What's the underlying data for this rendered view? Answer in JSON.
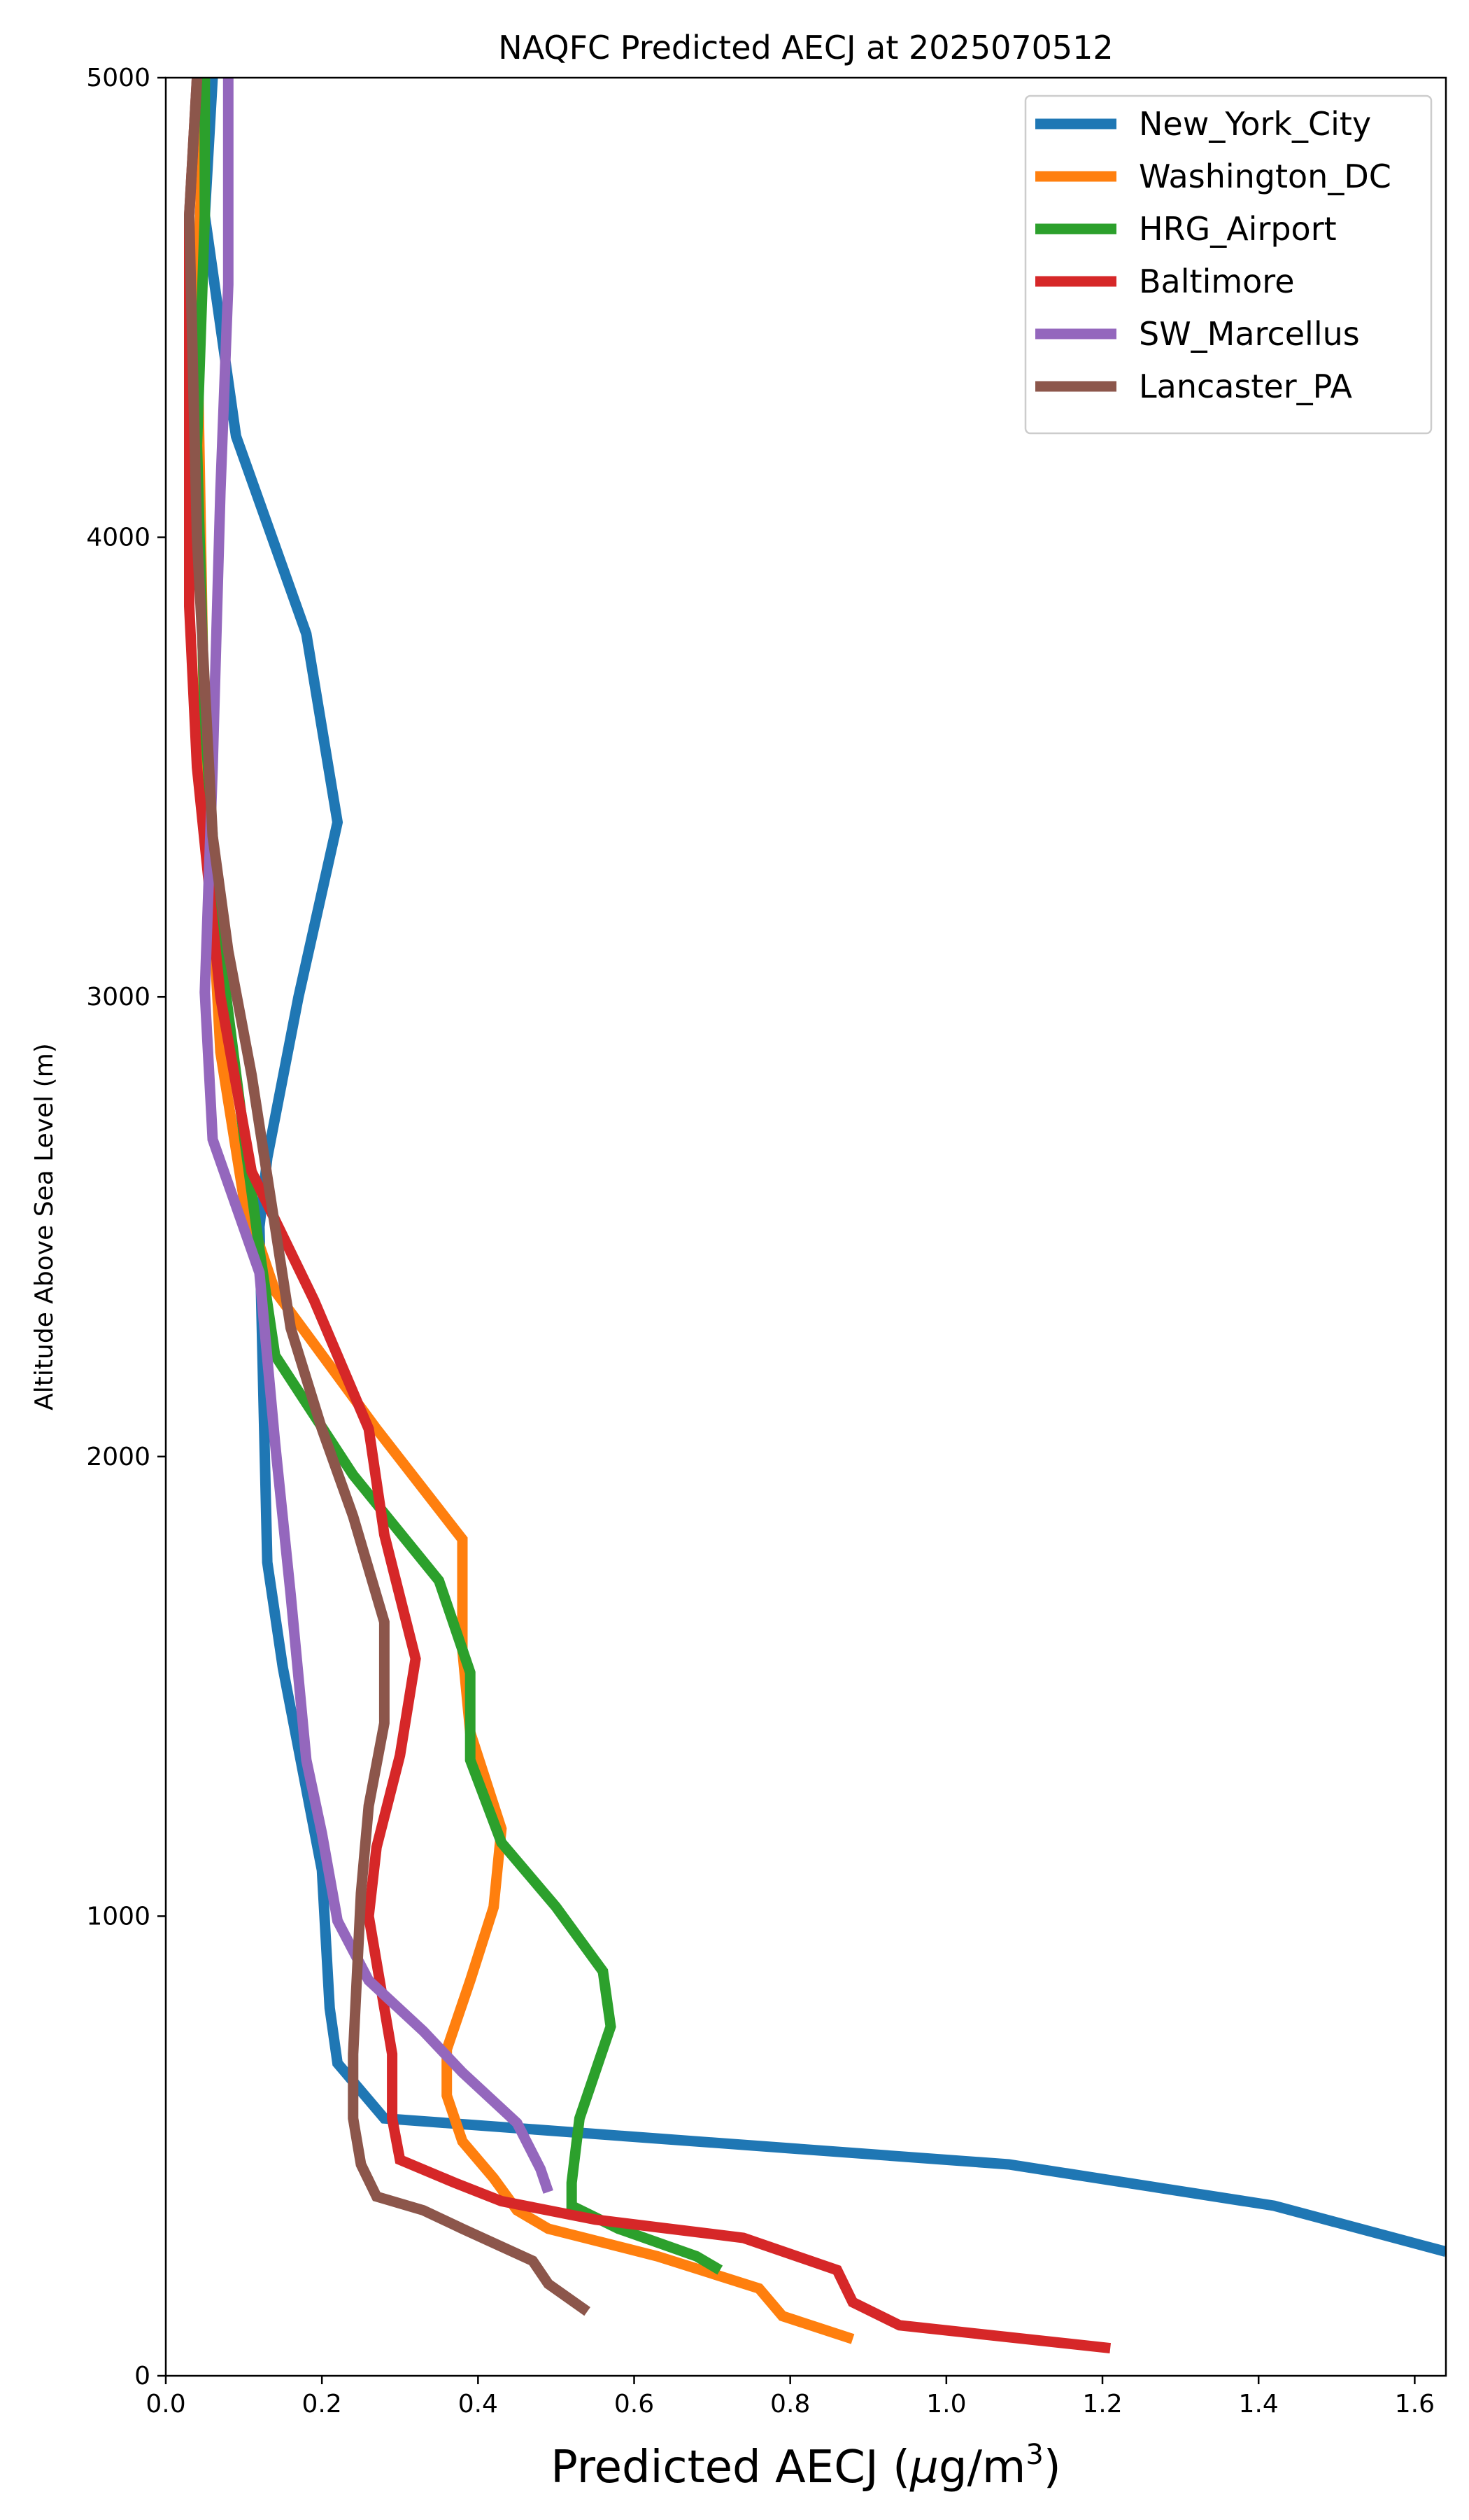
{
  "chart_data": {
    "type": "line",
    "title": "NAQFC Predicted AECJ at 2025070512",
    "xlabel": "Predicted AECJ (μg/m³)",
    "xlabel_main": "Predicted AECJ (",
    "xlabel_mu": "μ",
    "xlabel_unit": "g/m",
    "xlabel_exp": "3",
    "xlabel_close": ")",
    "ylabel": "Altitude Above Sea Level (m)",
    "xlim": [
      0,
      1.64
    ],
    "ylim": [
      0,
      5000
    ],
    "xticks": [
      0.0,
      0.2,
      0.4,
      0.6,
      0.8,
      1.0,
      1.2,
      1.4,
      1.6
    ],
    "xtick_labels": [
      "0.0",
      "0.2",
      "0.4",
      "0.6",
      "0.8",
      "1.0",
      "1.2",
      "1.4",
      "1.6"
    ],
    "yticks": [
      0,
      1000,
      2000,
      3000,
      4000,
      5000
    ],
    "ytick_labels": [
      "0",
      "1000",
      "2000",
      "3000",
      "4000",
      "5000"
    ],
    "grid": false,
    "legend_position": "top-right",
    "series": [
      {
        "name": "New_York_City",
        "color": "#1f77b4",
        "points": [
          [
            1.64,
            270
          ],
          [
            1.42,
            370
          ],
          [
            1.08,
            460
          ],
          [
            0.28,
            560
          ],
          [
            0.22,
            680
          ],
          [
            0.21,
            800
          ],
          [
            0.2,
            1100
          ],
          [
            0.15,
            1540
          ],
          [
            0.13,
            1770
          ],
          [
            0.12,
            2500
          ],
          [
            0.13,
            2650
          ],
          [
            0.17,
            3000
          ],
          [
            0.22,
            3380
          ],
          [
            0.18,
            3790
          ],
          [
            0.09,
            4220
          ],
          [
            0.05,
            4700
          ],
          [
            0.06,
            5000
          ]
        ]
      },
      {
        "name": "Washington_DC",
        "color": "#ff7f0e",
        "points": [
          [
            0.88,
            80
          ],
          [
            0.79,
            130
          ],
          [
            0.76,
            190
          ],
          [
            0.63,
            260
          ],
          [
            0.49,
            320
          ],
          [
            0.45,
            360
          ],
          [
            0.42,
            430
          ],
          [
            0.38,
            510
          ],
          [
            0.36,
            610
          ],
          [
            0.36,
            710
          ],
          [
            0.39,
            860
          ],
          [
            0.42,
            1020
          ],
          [
            0.43,
            1190
          ],
          [
            0.39,
            1400
          ],
          [
            0.38,
            1580
          ],
          [
            0.38,
            1820
          ],
          [
            0.27,
            2060
          ],
          [
            0.14,
            2360
          ],
          [
            0.1,
            2560
          ],
          [
            0.07,
            2880
          ],
          [
            0.05,
            3500
          ],
          [
            0.04,
            4500
          ],
          [
            0.05,
            5000
          ]
        ]
      },
      {
        "name": "HRG_Airport",
        "color": "#2ca02c",
        "points": [
          [
            0.71,
            230
          ],
          [
            0.68,
            260
          ],
          [
            0.58,
            320
          ],
          [
            0.52,
            370
          ],
          [
            0.52,
            420
          ],
          [
            0.53,
            560
          ],
          [
            0.55,
            660
          ],
          [
            0.57,
            760
          ],
          [
            0.56,
            880
          ],
          [
            0.5,
            1020
          ],
          [
            0.43,
            1160
          ],
          [
            0.39,
            1340
          ],
          [
            0.39,
            1530
          ],
          [
            0.35,
            1730
          ],
          [
            0.24,
            1960
          ],
          [
            0.14,
            2220
          ],
          [
            0.12,
            2450
          ],
          [
            0.1,
            2700
          ],
          [
            0.07,
            3100
          ],
          [
            0.05,
            3600
          ],
          [
            0.04,
            4200
          ],
          [
            0.05,
            4700
          ],
          [
            0.05,
            5000
          ]
        ]
      },
      {
        "name": "Baltimore",
        "color": "#d62728",
        "points": [
          [
            1.21,
            60
          ],
          [
            0.94,
            110
          ],
          [
            0.88,
            160
          ],
          [
            0.86,
            230
          ],
          [
            0.74,
            300
          ],
          [
            0.55,
            340
          ],
          [
            0.43,
            380
          ],
          [
            0.37,
            420
          ],
          [
            0.3,
            470
          ],
          [
            0.29,
            560
          ],
          [
            0.29,
            700
          ],
          [
            0.26,
            1000
          ],
          [
            0.27,
            1150
          ],
          [
            0.3,
            1350
          ],
          [
            0.32,
            1560
          ],
          [
            0.28,
            1830
          ],
          [
            0.26,
            2060
          ],
          [
            0.19,
            2340
          ],
          [
            0.11,
            2620
          ],
          [
            0.07,
            3000
          ],
          [
            0.04,
            3500
          ],
          [
            0.03,
            3850
          ],
          [
            0.03,
            4300
          ],
          [
            0.03,
            4700
          ],
          [
            0.04,
            5000
          ]
        ]
      },
      {
        "name": "SW_Marcellus",
        "color": "#9467bd",
        "points": [
          [
            0.49,
            400
          ],
          [
            0.48,
            450
          ],
          [
            0.45,
            550
          ],
          [
            0.38,
            660
          ],
          [
            0.33,
            750
          ],
          [
            0.26,
            860
          ],
          [
            0.22,
            990
          ],
          [
            0.2,
            1180
          ],
          [
            0.18,
            1340
          ],
          [
            0.16,
            1700
          ],
          [
            0.14,
            2030
          ],
          [
            0.12,
            2400
          ],
          [
            0.06,
            2690
          ],
          [
            0.05,
            3010
          ],
          [
            0.06,
            3500
          ],
          [
            0.07,
            4100
          ],
          [
            0.08,
            4550
          ],
          [
            0.08,
            4900
          ],
          [
            0.08,
            5000
          ]
        ]
      },
      {
        "name": "Lancaster_PA",
        "color": "#8c564b",
        "points": [
          [
            0.54,
            140
          ],
          [
            0.49,
            200
          ],
          [
            0.47,
            250
          ],
          [
            0.38,
            320
          ],
          [
            0.33,
            360
          ],
          [
            0.27,
            390
          ],
          [
            0.25,
            460
          ],
          [
            0.24,
            560
          ],
          [
            0.24,
            700
          ],
          [
            0.25,
            1050
          ],
          [
            0.26,
            1240
          ],
          [
            0.28,
            1420
          ],
          [
            0.28,
            1640
          ],
          [
            0.24,
            1870
          ],
          [
            0.2,
            2060
          ],
          [
            0.16,
            2280
          ],
          [
            0.14,
            2500
          ],
          [
            0.11,
            2830
          ],
          [
            0.08,
            3100
          ],
          [
            0.06,
            3350
          ],
          [
            0.04,
            4000
          ],
          [
            0.03,
            4700
          ],
          [
            0.04,
            5000
          ]
        ]
      }
    ]
  }
}
